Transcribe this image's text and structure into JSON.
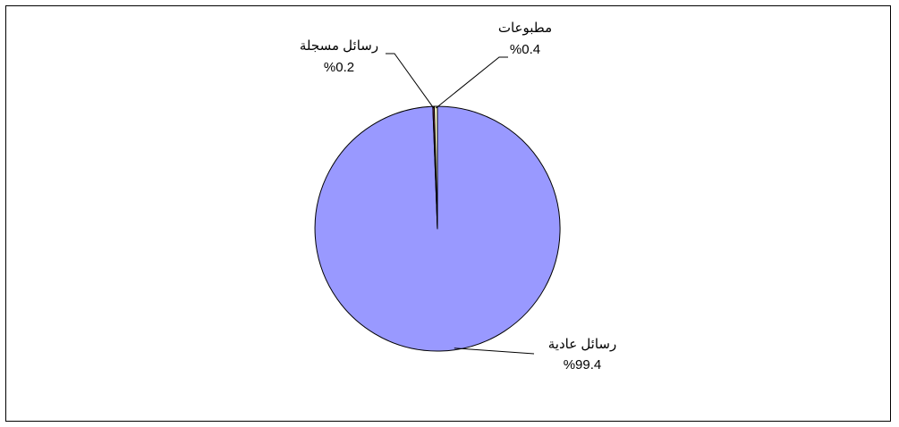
{
  "chart_data": {
    "type": "pie",
    "title": "",
    "slices": [
      {
        "label": "رسائل عادية",
        "value_label": "%99.4",
        "value": 99.4,
        "color": "#9999ff"
      },
      {
        "label": "رسائل مسجلة",
        "value_label": "%0.2",
        "value": 0.2,
        "color": "#993366"
      },
      {
        "label": "مطبوعات",
        "value_label": "%0.4",
        "value": 0.4,
        "color": "#ffffcc"
      }
    ],
    "legend": "none",
    "grid": false
  }
}
